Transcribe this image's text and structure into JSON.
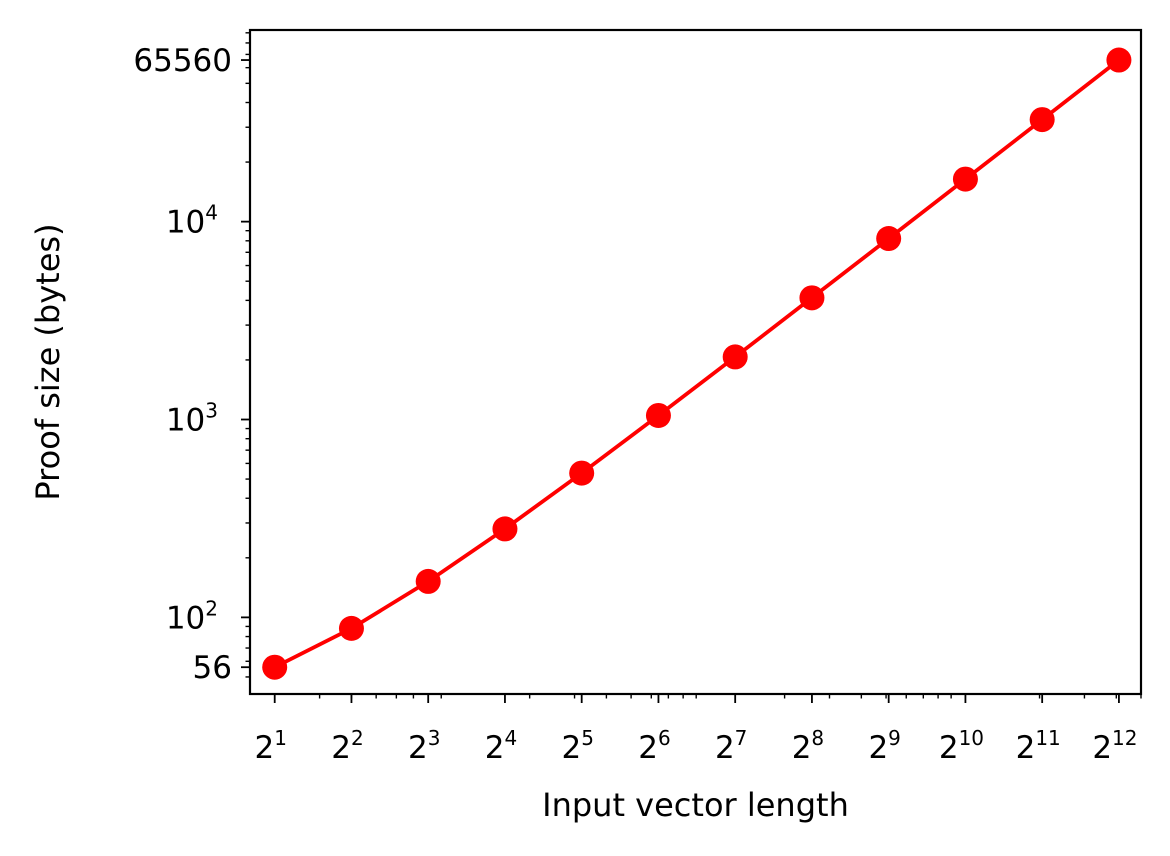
{
  "chart_data": {
    "type": "line",
    "xlabel": "Input vector length",
    "ylabel": "Proof size (bytes)",
    "x_scale": "log2",
    "y_scale": "log10",
    "x": [
      2,
      4,
      8,
      16,
      32,
      64,
      128,
      256,
      512,
      1024,
      2048,
      4096
    ],
    "x_tick_labels": [
      {
        "base": "2",
        "exp": "1"
      },
      {
        "base": "2",
        "exp": "2"
      },
      {
        "base": "2",
        "exp": "3"
      },
      {
        "base": "2",
        "exp": "4"
      },
      {
        "base": "2",
        "exp": "5"
      },
      {
        "base": "2",
        "exp": "6"
      },
      {
        "base": "2",
        "exp": "7"
      },
      {
        "base": "2",
        "exp": "8"
      },
      {
        "base": "2",
        "exp": "9"
      },
      {
        "base": "2",
        "exp": "10"
      },
      {
        "base": "2",
        "exp": "11"
      },
      {
        "base": "2",
        "exp": "12"
      }
    ],
    "y_ticks": [
      {
        "value": 56,
        "base": "56",
        "exp": ""
      },
      {
        "value": 100,
        "base": "10",
        "exp": "2"
      },
      {
        "value": 1000,
        "base": "10",
        "exp": "3"
      },
      {
        "value": 10000,
        "base": "10",
        "exp": "4"
      },
      {
        "value": 65560,
        "base": "65560",
        "exp": ""
      }
    ],
    "xlim": [
      1.6,
      5000
    ],
    "ylim": [
      41,
      93000
    ],
    "grid": false,
    "series": [
      {
        "color": "#ff0000",
        "marker": "circle",
        "values": [
          56,
          88,
          152,
          280,
          536,
          1048,
          2072,
          4120,
          8216,
          16408,
          32792,
          65560
        ]
      }
    ]
  }
}
